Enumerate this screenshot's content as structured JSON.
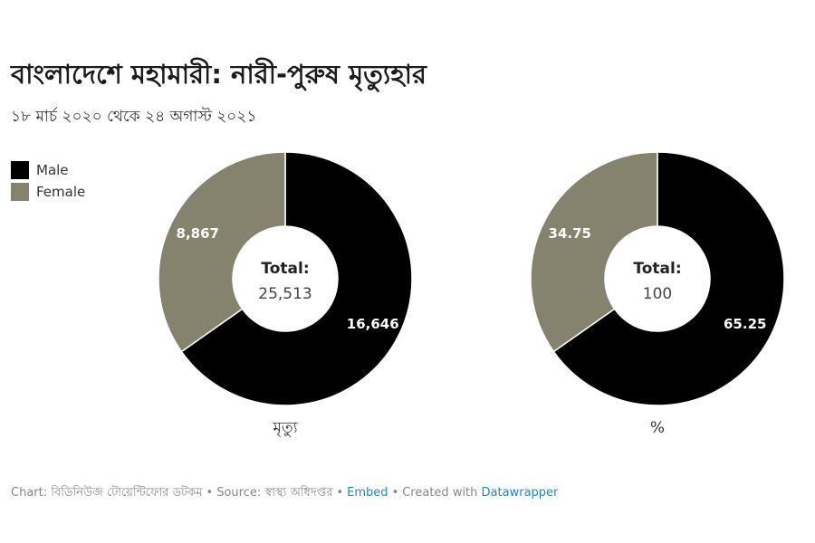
{
  "header": {
    "title": "বাংলাদেশে মহামারী: নারী-পুরুষ মৃত্যুহার",
    "subtitle": "১৮ মার্চ ২০২০ থেকে ২৪ অগাস্ট ২০২১"
  },
  "legend": {
    "items": [
      {
        "label": "Male",
        "color": "#000000"
      },
      {
        "label": "Female",
        "color": "#85826d"
      }
    ]
  },
  "chart_data": [
    {
      "type": "pie",
      "donut": true,
      "categories": [
        "Male",
        "Female"
      ],
      "values": [
        16646,
        8867
      ],
      "value_labels": [
        "16,646",
        "8,867"
      ],
      "colors": [
        "#000000",
        "#85826d"
      ],
      "center_title": "Total:",
      "center_value": "25,513",
      "xlabel": "মৃত্যু"
    },
    {
      "type": "pie",
      "donut": true,
      "categories": [
        "Male",
        "Female"
      ],
      "values": [
        65.25,
        34.75
      ],
      "value_labels": [
        "65.25",
        "34.75"
      ],
      "colors": [
        "#000000",
        "#85826d"
      ],
      "center_title": "Total:",
      "center_value": "100",
      "xlabel": "%"
    }
  ],
  "footer": {
    "chart_credit": "Chart: বিডিনিউজ টোয়েন্টিফোর ডটকম",
    "source": "Source: স্বাস্থ্য অধিদপ্তর",
    "embed_link": "Embed",
    "created_with": "Created with",
    "tool_link": "Datawrapper",
    "separator": "•"
  }
}
